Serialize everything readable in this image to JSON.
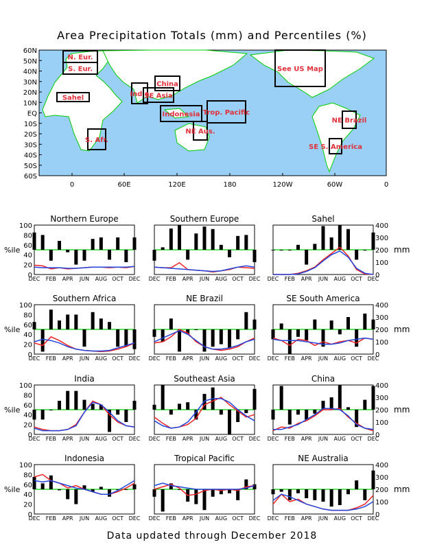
{
  "title": "Area Precipitation Totals (mm) and Percentiles (%)",
  "footer": "Data updated through December 2018",
  "colors": {
    "ocean": "#9ad0f5",
    "land": "#ffffff",
    "coast": "#00cc00",
    "bars": "#000000",
    "refline": "#00cc00",
    "red": "#ee2222",
    "blue": "#2244dd",
    "label": "#e0303a"
  },
  "map": {
    "lat_labels": [
      "60N",
      "50N",
      "40N",
      "30N",
      "20N",
      "10N",
      "EQ",
      "10S",
      "20S",
      "30S",
      "40S",
      "50S",
      "60S"
    ],
    "lon_labels": [
      "0",
      "60E",
      "120E",
      "180",
      "120W",
      "60W",
      "0"
    ],
    "regions": [
      "N. Eur.",
      "S. Eur.",
      "Sahel",
      "S. Afr.",
      "India",
      "China",
      "SE Asia",
      "Indonesia",
      "Trop. Pacific",
      "NE Aus.",
      "See US Map",
      "NE Brazil",
      "SE S. America"
    ]
  },
  "left_axis_title": "%ile",
  "right_axis_title": "mm",
  "pct_ticks": [
    "0",
    "20",
    "40",
    "60",
    "80",
    "100"
  ],
  "mm_ticks": [
    "0",
    "100",
    "200",
    "300",
    "400"
  ],
  "month_labels": [
    "DEC",
    "FEB",
    "APR",
    "JUN",
    "AUG",
    "OCT",
    "DEC"
  ],
  "chart_data": [
    {
      "type": "bar",
      "title": "Northern Europe",
      "ylim": [
        0,
        100
      ],
      "y2lim": [
        0,
        400
      ],
      "x": [
        "DEC",
        "JAN",
        "FEB",
        "MAR",
        "APR",
        "MAY",
        "JUN",
        "JUL",
        "AUG",
        "SEP",
        "OCT",
        "NOV",
        "DEC"
      ],
      "percentiles": [
        85,
        80,
        28,
        68,
        45,
        20,
        28,
        72,
        75,
        30,
        75,
        25,
        75
      ],
      "series": [
        {
          "name": "red",
          "values": [
            75,
            70,
            45,
            55,
            45,
            50,
            55,
            60,
            60,
            55,
            60,
            55,
            65
          ]
        },
        {
          "name": "blue",
          "values": [
            60,
            55,
            55,
            55,
            50,
            50,
            55,
            60,
            60,
            60,
            60,
            60,
            65
          ]
        }
      ]
    },
    {
      "type": "bar",
      "title": "Southern Europe",
      "ylim": [
        0,
        100
      ],
      "y2lim": [
        0,
        400
      ],
      "x": [
        "DEC",
        "JAN",
        "FEB",
        "MAR",
        "APR",
        "MAY",
        "JUN",
        "JUL",
        "AUG",
        "SEP",
        "OCT",
        "NOV",
        "DEC"
      ],
      "percentiles": [
        28,
        55,
        93,
        100,
        30,
        83,
        97,
        92,
        60,
        35,
        78,
        80,
        25
      ],
      "series": [
        {
          "name": "red",
          "values": [
            60,
            55,
            55,
            95,
            40,
            35,
            30,
            20,
            30,
            40,
            60,
            55,
            50
          ]
        },
        {
          "name": "blue",
          "values": [
            60,
            55,
            50,
            45,
            40,
            35,
            30,
            25,
            30,
            45,
            60,
            70,
            60
          ]
        }
      ]
    },
    {
      "type": "bar",
      "title": "Sahel",
      "ylim": [
        0,
        100
      ],
      "y2lim": [
        0,
        400
      ],
      "x": [
        "DEC",
        "JAN",
        "FEB",
        "MAR",
        "APR",
        "MAY",
        "JUN",
        "JUL",
        "AUG",
        "SEP",
        "OCT",
        "NOV",
        "DEC"
      ],
      "percentiles": [
        50,
        50,
        50,
        60,
        20,
        62,
        98,
        75,
        100,
        92,
        30,
        50,
        85
      ],
      "series": [
        {
          "name": "red",
          "values": [
            0,
            0,
            0,
            10,
            30,
            60,
            120,
            170,
            220,
            150,
            40,
            5,
            0
          ]
        },
        {
          "name": "blue",
          "values": [
            0,
            0,
            0,
            5,
            25,
            55,
            110,
            160,
            190,
            140,
            50,
            10,
            0
          ]
        }
      ]
    },
    {
      "type": "bar",
      "title": "Southern Africa",
      "ylim": [
        0,
        100
      ],
      "y2lim": [
        0,
        400
      ],
      "x": [
        "DEC",
        "JAN",
        "FEB",
        "MAR",
        "APR",
        "MAY",
        "JUN",
        "JUL",
        "AUG",
        "SEP",
        "OCT",
        "NOV",
        "DEC"
      ],
      "percentiles": [
        65,
        5,
        90,
        68,
        80,
        80,
        15,
        85,
        72,
        65,
        15,
        15,
        10
      ],
      "series": [
        {
          "name": "red",
          "values": [
            90,
            70,
            140,
            110,
            70,
            40,
            30,
            25,
            20,
            25,
            40,
            60,
            90
          ]
        },
        {
          "name": "blue",
          "values": [
            100,
            120,
            110,
            90,
            60,
            40,
            30,
            25,
            25,
            30,
            50,
            70,
            90
          ]
        }
      ]
    },
    {
      "type": "bar",
      "title": "NE Brazil",
      "ylim": [
        0,
        100
      ],
      "y2lim": [
        0,
        400
      ],
      "x": [
        "DEC",
        "JAN",
        "FEB",
        "MAR",
        "APR",
        "MAY",
        "JUN",
        "JUL",
        "AUG",
        "SEP",
        "OCT",
        "NOV",
        "DEC"
      ],
      "percentiles": [
        35,
        25,
        72,
        5,
        40,
        50,
        5,
        15,
        20,
        12,
        30,
        85,
        70
      ],
      "series": [
        {
          "name": "red",
          "values": [
            90,
            100,
            140,
            200,
            170,
            100,
            60,
            40,
            30,
            40,
            60,
            100,
            130
          ]
        },
        {
          "name": "blue",
          "values": [
            100,
            130,
            160,
            190,
            160,
            110,
            60,
            40,
            40,
            50,
            70,
            100,
            120
          ]
        }
      ]
    },
    {
      "type": "bar",
      "title": "SE South America",
      "ylim": [
        0,
        100
      ],
      "y2lim": [
        0,
        400
      ],
      "x": [
        "DEC",
        "JAN",
        "FEB",
        "MAR",
        "APR",
        "MAY",
        "JUN",
        "JUL",
        "AUG",
        "SEP",
        "OCT",
        "NOV",
        "DEC"
      ],
      "percentiles": [
        30,
        62,
        0,
        35,
        28,
        70,
        15,
        68,
        40,
        75,
        15,
        82,
        70
      ],
      "series": [
        {
          "name": "red",
          "values": [
            130,
            110,
            70,
            120,
            110,
            70,
            100,
            80,
            100,
            110,
            90,
            130,
            120
          ]
        },
        {
          "name": "blue",
          "values": [
            120,
            110,
            110,
            110,
            100,
            90,
            80,
            80,
            90,
            110,
            120,
            130,
            120
          ]
        }
      ]
    },
    {
      "type": "bar",
      "title": "India",
      "ylim": [
        0,
        100
      ],
      "y2lim": [
        0,
        400
      ],
      "x": [
        "DEC",
        "JAN",
        "FEB",
        "MAR",
        "APR",
        "MAY",
        "JUN",
        "JUL",
        "AUG",
        "SEP",
        "OCT",
        "NOV",
        "DEC"
      ],
      "percentiles": [
        30,
        30,
        50,
        68,
        88,
        88,
        70,
        62,
        60,
        5,
        40,
        25,
        68
      ],
      "series": [
        {
          "name": "red",
          "values": [
            60,
            40,
            30,
            30,
            40,
            80,
            180,
            270,
            240,
            160,
            100,
            70,
            60
          ]
        },
        {
          "name": "blue",
          "values": [
            50,
            30,
            30,
            30,
            40,
            70,
            180,
            260,
            240,
            180,
            110,
            70,
            60
          ]
        }
      ]
    },
    {
      "type": "bar",
      "title": "Southeast Asia",
      "ylim": [
        0,
        100
      ],
      "y2lim": [
        0,
        400
      ],
      "x": [
        "DEC",
        "JAN",
        "FEB",
        "MAR",
        "APR",
        "MAY",
        "JUN",
        "JUL",
        "AUG",
        "SEP",
        "OCT",
        "NOV",
        "DEC"
      ],
      "percentiles": [
        60,
        100,
        40,
        62,
        65,
        30,
        82,
        95,
        40,
        0,
        25,
        43,
        92
      ],
      "series": [
        {
          "name": "red",
          "values": [
            140,
            90,
            50,
            60,
            80,
            130,
            240,
            270,
            300,
            240,
            190,
            140,
            160
          ]
        },
        {
          "name": "blue",
          "values": [
            110,
            70,
            50,
            60,
            100,
            180,
            270,
            290,
            290,
            260,
            200,
            150,
            110
          ]
        }
      ]
    },
    {
      "type": "bar",
      "title": "China",
      "ylim": [
        0,
        100
      ],
      "y2lim": [
        0,
        400
      ],
      "x": [
        "DEC",
        "JAN",
        "FEB",
        "MAR",
        "APR",
        "MAY",
        "JUN",
        "JUL",
        "AUG",
        "SEP",
        "OCT",
        "NOV",
        "DEC"
      ],
      "percentiles": [
        30,
        98,
        20,
        40,
        30,
        42,
        68,
        75,
        100,
        55,
        15,
        70,
        98
      ],
      "series": [
        {
          "name": "red",
          "values": [
            30,
            60,
            50,
            90,
            110,
            150,
            200,
            200,
            210,
            140,
            90,
            50,
            30
          ]
        },
        {
          "name": "blue",
          "values": [
            40,
            40,
            60,
            80,
            120,
            160,
            210,
            210,
            200,
            150,
            80,
            50,
            40
          ]
        }
      ]
    },
    {
      "type": "bar",
      "title": "Indonesia",
      "ylim": [
        0,
        100
      ],
      "y2lim": [
        0,
        400
      ],
      "x": [
        "DEC",
        "JAN",
        "FEB",
        "MAR",
        "APR",
        "MAY",
        "JUN",
        "JUL",
        "AUG",
        "SEP",
        "OCT",
        "NOV",
        "DEC"
      ],
      "percentiles": [
        75,
        62,
        78,
        48,
        30,
        20,
        58,
        45,
        55,
        35,
        50,
        50,
        60
      ],
      "series": [
        {
          "name": "red",
          "values": [
            300,
            320,
            270,
            250,
            210,
            230,
            200,
            180,
            160,
            160,
            180,
            210,
            250
          ]
        },
        {
          "name": "blue",
          "values": [
            270,
            260,
            270,
            250,
            230,
            210,
            200,
            180,
            160,
            160,
            190,
            230,
            270
          ]
        }
      ]
    },
    {
      "type": "bar",
      "title": "Tropical Pacific",
      "ylim": [
        0,
        100
      ],
      "y2lim": [
        0,
        400
      ],
      "x": [
        "DEC",
        "JAN",
        "FEB",
        "MAR",
        "APR",
        "MAY",
        "JUN",
        "JUL",
        "AUG",
        "SEP",
        "OCT",
        "NOV",
        "DEC"
      ],
      "percentiles": [
        35,
        5,
        62,
        50,
        25,
        20,
        8,
        35,
        40,
        42,
        28,
        70,
        60
      ],
      "series": [
        {
          "name": "red",
          "values": [
            200,
            220,
            240,
            210,
            150,
            160,
            190,
            200,
            190,
            200,
            190,
            220,
            230
          ]
        },
        {
          "name": "blue",
          "values": [
            230,
            250,
            230,
            220,
            210,
            200,
            200,
            200,
            200,
            200,
            200,
            210,
            230
          ]
        }
      ]
    },
    {
      "type": "bar",
      "title": "NE Australia",
      "ylim": [
        0,
        100
      ],
      "y2lim": [
        0,
        400
      ],
      "x": [
        "DEC",
        "JAN",
        "FEB",
        "MAR",
        "APR",
        "MAY",
        "JUN",
        "JUL",
        "AUG",
        "SEP",
        "OCT",
        "NOV",
        "DEC"
      ],
      "percentiles": [
        40,
        45,
        28,
        42,
        32,
        28,
        25,
        15,
        18,
        40,
        68,
        28,
        88
      ],
      "series": [
        {
          "name": "red",
          "values": [
            80,
            160,
            100,
            120,
            80,
            60,
            40,
            30,
            30,
            30,
            50,
            80,
            150
          ]
        },
        {
          "name": "blue",
          "values": [
            110,
            160,
            140,
            110,
            80,
            60,
            40,
            30,
            30,
            30,
            40,
            60,
            100
          ]
        }
      ]
    }
  ]
}
